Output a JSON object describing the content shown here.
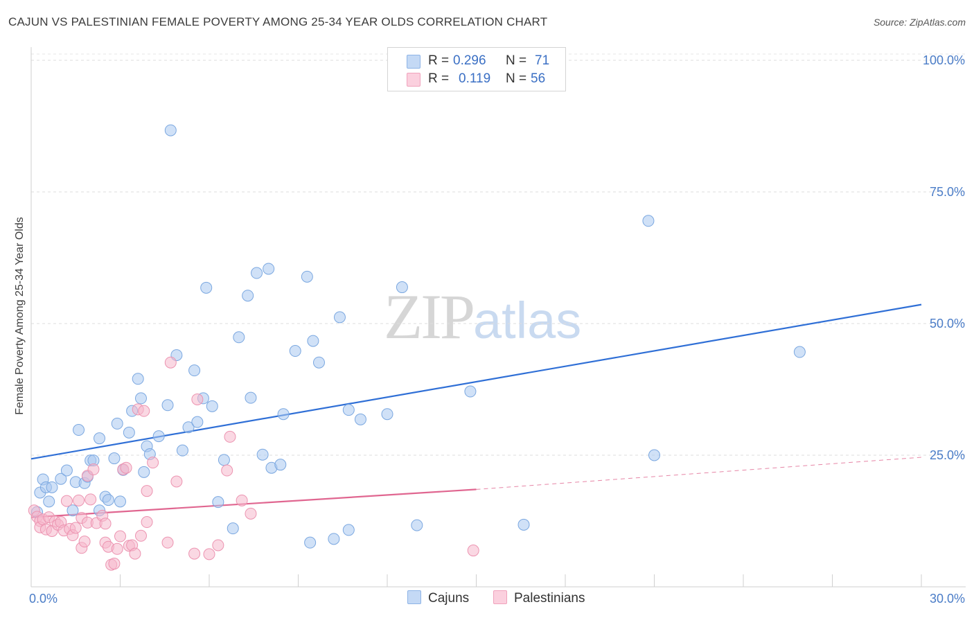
{
  "header": {
    "title": "CAJUN VS PALESTINIAN FEMALE POVERTY AMONG 25-34 YEAR OLDS CORRELATION CHART",
    "source": "Source: ZipAtlas.com"
  },
  "watermark": {
    "zip": "ZIP",
    "atlas": "atlas"
  },
  "legend": {
    "rows": [
      {
        "r_label": "R =",
        "r_value": "0.296",
        "n_label": "N =",
        "n_value": "71",
        "color": "#a9c8f0"
      },
      {
        "r_label": "R =",
        "r_value": "0.119",
        "n_label": "N =",
        "n_value": "56",
        "color": "#f6b8cc"
      }
    ]
  },
  "bottom_legend": {
    "cajuns": "Cajuns",
    "palestinians": "Palestinians"
  },
  "chart_data": {
    "type": "scatter",
    "title": "CAJUN VS PALESTINIAN FEMALE POVERTY AMONG 25-34 YEAR OLDS CORRELATION CHART",
    "xlabel": "",
    "ylabel": "Female Poverty Among 25-34 Year Olds",
    "xlim": [
      0,
      30
    ],
    "ylim": [
      0,
      100
    ],
    "x_tick_labels": [
      "0.0%",
      "30.0%"
    ],
    "y_ticks": [
      25,
      50,
      75,
      100
    ],
    "y_tick_labels": [
      "25.0%",
      "50.0%",
      "75.0%",
      "100.0%"
    ],
    "grid": true,
    "series": [
      {
        "name": "Cajuns",
        "color": "#a9c8f0",
        "stroke": "#7aa7e0",
        "trend_color": "#2f6fd6",
        "trend": {
          "x": [
            0,
            30
          ],
          "y": [
            24.3,
            53.6
          ]
        },
        "points": [
          [
            0.2,
            14.2
          ],
          [
            0.3,
            17.9
          ],
          [
            0.4,
            20.4
          ],
          [
            0.5,
            18.9
          ],
          [
            0.6,
            16.2
          ],
          [
            0.7,
            18.9
          ],
          [
            1.0,
            20.5
          ],
          [
            1.2,
            22.1
          ],
          [
            1.4,
            14.5
          ],
          [
            1.5,
            19.9
          ],
          [
            1.6,
            29.8
          ],
          [
            1.8,
            19.7
          ],
          [
            1.9,
            20.9
          ],
          [
            2.0,
            24.0
          ],
          [
            2.1,
            24.0
          ],
          [
            2.3,
            28.2
          ],
          [
            2.3,
            14.5
          ],
          [
            2.5,
            17.1
          ],
          [
            2.6,
            16.5
          ],
          [
            2.8,
            24.4
          ],
          [
            2.9,
            31.0
          ],
          [
            3.0,
            16.2
          ],
          [
            3.1,
            22.2
          ],
          [
            3.3,
            29.3
          ],
          [
            3.4,
            33.4
          ],
          [
            3.6,
            39.5
          ],
          [
            3.7,
            35.8
          ],
          [
            3.8,
            21.8
          ],
          [
            3.9,
            26.7
          ],
          [
            4.0,
            25.2
          ],
          [
            4.3,
            28.6
          ],
          [
            4.6,
            34.5
          ],
          [
            4.7,
            86.7
          ],
          [
            4.9,
            44.0
          ],
          [
            5.1,
            25.9
          ],
          [
            5.3,
            30.3
          ],
          [
            5.5,
            41.1
          ],
          [
            5.6,
            31.3
          ],
          [
            5.8,
            35.8
          ],
          [
            5.9,
            56.8
          ],
          [
            6.1,
            34.3
          ],
          [
            6.3,
            16.1
          ],
          [
            6.5,
            24.1
          ],
          [
            6.8,
            11.1
          ],
          [
            7.0,
            47.4
          ],
          [
            7.3,
            55.3
          ],
          [
            7.4,
            35.9
          ],
          [
            7.6,
            59.6
          ],
          [
            7.8,
            25.1
          ],
          [
            8.0,
            60.4
          ],
          [
            8.1,
            22.6
          ],
          [
            8.4,
            23.2
          ],
          [
            8.5,
            32.8
          ],
          [
            8.9,
            44.8
          ],
          [
            9.3,
            58.9
          ],
          [
            9.4,
            8.4
          ],
          [
            9.5,
            46.7
          ],
          [
            9.7,
            42.6
          ],
          [
            10.2,
            9.1
          ],
          [
            10.4,
            51.2
          ],
          [
            10.7,
            33.6
          ],
          [
            10.7,
            10.8
          ],
          [
            11.1,
            31.8
          ],
          [
            12.0,
            32.8
          ],
          [
            12.5,
            56.9
          ],
          [
            13.0,
            11.7
          ],
          [
            14.8,
            37.1
          ],
          [
            16.6,
            11.8
          ],
          [
            20.8,
            69.5
          ],
          [
            21.0,
            25.0
          ],
          [
            25.9,
            44.6
          ]
        ]
      },
      {
        "name": "Palestinians",
        "color": "#f6b8cc",
        "stroke": "#ec93b0",
        "trend_color": "#e06690",
        "trend": {
          "x": [
            0,
            15
          ],
          "y": [
            13.2,
            18.5
          ]
        },
        "trend_dashed": {
          "x": [
            15,
            30
          ],
          "y": [
            18.5,
            24.6
          ]
        },
        "points": [
          [
            0.1,
            14.5
          ],
          [
            0.2,
            13.3
          ],
          [
            0.3,
            12.5
          ],
          [
            0.3,
            11.3
          ],
          [
            0.4,
            12.8
          ],
          [
            0.5,
            10.9
          ],
          [
            0.6,
            13.2
          ],
          [
            0.7,
            10.6
          ],
          [
            0.8,
            12.4
          ],
          [
            0.9,
            11.8
          ],
          [
            1.0,
            12.3
          ],
          [
            1.1,
            10.7
          ],
          [
            1.2,
            16.3
          ],
          [
            1.3,
            11.0
          ],
          [
            1.4,
            9.8
          ],
          [
            1.5,
            11.2
          ],
          [
            1.6,
            16.4
          ],
          [
            1.7,
            13.1
          ],
          [
            1.7,
            7.4
          ],
          [
            1.8,
            8.6
          ],
          [
            1.9,
            21.1
          ],
          [
            1.9,
            12.2
          ],
          [
            2.0,
            16.6
          ],
          [
            2.1,
            22.3
          ],
          [
            2.2,
            12.1
          ],
          [
            2.4,
            13.5
          ],
          [
            2.5,
            8.4
          ],
          [
            2.5,
            12.0
          ],
          [
            2.6,
            7.6
          ],
          [
            2.7,
            4.2
          ],
          [
            2.8,
            4.4
          ],
          [
            2.9,
            7.2
          ],
          [
            3.0,
            9.6
          ],
          [
            3.1,
            22.3
          ],
          [
            3.2,
            22.6
          ],
          [
            3.3,
            7.8
          ],
          [
            3.4,
            7.9
          ],
          [
            3.5,
            6.3
          ],
          [
            3.6,
            33.7
          ],
          [
            3.7,
            9.7
          ],
          [
            3.8,
            33.4
          ],
          [
            3.9,
            12.3
          ],
          [
            3.9,
            18.2
          ],
          [
            4.1,
            23.6
          ],
          [
            4.6,
            8.4
          ],
          [
            4.7,
            42.6
          ],
          [
            4.9,
            20.0
          ],
          [
            5.5,
            6.3
          ],
          [
            5.6,
            35.6
          ],
          [
            6.0,
            6.2
          ],
          [
            6.3,
            7.9
          ],
          [
            6.6,
            22.1
          ],
          [
            6.7,
            28.5
          ],
          [
            7.1,
            16.4
          ],
          [
            7.4,
            13.9
          ],
          [
            14.9,
            6.9
          ]
        ]
      }
    ]
  }
}
